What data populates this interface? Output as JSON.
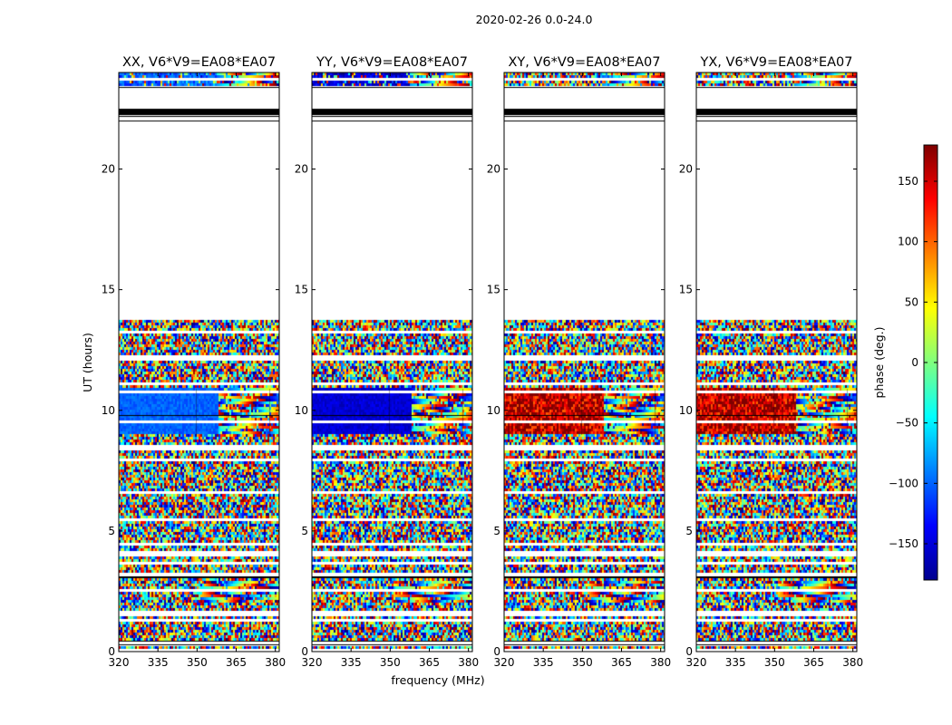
{
  "chart_data": {
    "type": "heatmap",
    "suptitle": "2020-02-26 0.0-24.0",
    "xlabel": "frequency (MHz)",
    "ylabel": "UT (hours)",
    "xlim": [
      320,
      381.5
    ],
    "ylim": [
      0,
      24
    ],
    "x_ticks": [
      320,
      335,
      350,
      365,
      380
    ],
    "y_ticks": [
      0,
      5,
      10,
      15,
      20
    ],
    "colorbar": {
      "label": "phase (deg.)",
      "range": [
        -180,
        180
      ],
      "ticks": [
        -150,
        -100,
        -50,
        0,
        50,
        100,
        150
      ],
      "colormap": "jet"
    },
    "panels": [
      {
        "title": "XX, V6*V9=EA08*EA07",
        "polarization": "XX",
        "calibrated_block_phase_deg": -100
      },
      {
        "title": "YY, V6*V9=EA08*EA07",
        "polarization": "YY",
        "calibrated_block_phase_deg": -150
      },
      {
        "title": "XY, V6*V9=EA08*EA07",
        "polarization": "XY",
        "calibrated_block_phase_deg": 160
      },
      {
        "title": "YX, V6*V9=EA08*EA07",
        "polarization": "YX",
        "calibrated_block_phase_deg": 160
      }
    ],
    "data_time_ranges_hours": [
      [
        0,
        0.35
      ],
      [
        0.5,
        13.8
      ],
      [
        23.4,
        24
      ]
    ],
    "blank_time_range_hours": [
      13.8,
      23.4
    ]
  }
}
